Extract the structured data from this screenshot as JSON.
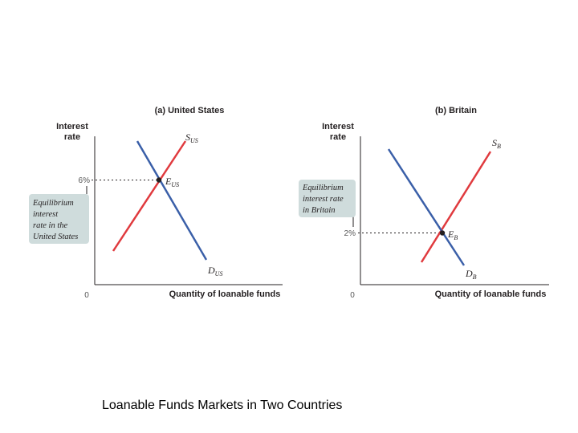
{
  "caption": "Loanable Funds Markets in Two Countries",
  "colors": {
    "supply": "#e03a3e",
    "demand": "#3a5fa8",
    "note_box": "#cfdcdc",
    "axis": "#231f20"
  },
  "panels": [
    {
      "title": "(a) United States",
      "y_label": [
        "Interest",
        "rate"
      ],
      "x_label": "Quantity of loanable funds",
      "origin_label": "0",
      "rate_tick": "6%",
      "supply_label": {
        "main": "S",
        "sub": "US"
      },
      "demand_label": {
        "main": "D",
        "sub": "US"
      },
      "equilibrium_label": {
        "main": "E",
        "sub": "US"
      },
      "note": [
        "Equilibrium",
        "interest",
        "rate in the",
        "United States"
      ]
    },
    {
      "title": "(b) Britain",
      "y_label": [
        "Interest",
        "rate"
      ],
      "x_label": "Quantity of loanable funds",
      "origin_label": "0",
      "rate_tick": "2%",
      "supply_label": {
        "main": "S",
        "sub": "B"
      },
      "demand_label": {
        "main": "D",
        "sub": "B"
      },
      "equilibrium_label": {
        "main": "E",
        "sub": "B"
      },
      "note": [
        "Equilibrium",
        "interest rate",
        "in Britain"
      ]
    }
  ]
}
